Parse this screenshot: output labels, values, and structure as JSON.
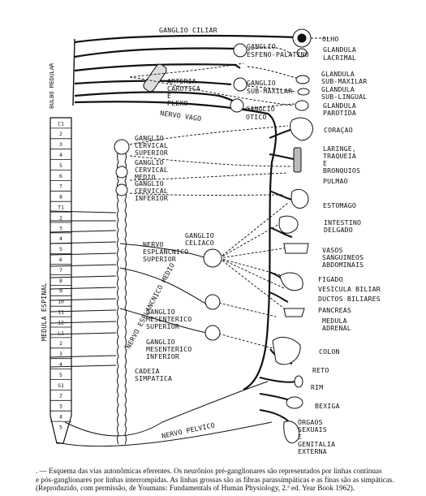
{
  "labels": {
    "ganglio_ciliar": "GANGLIO CILIAR",
    "ganglio_esfeno_l1": "GANGLIO",
    "ganglio_esfeno_l2": "ESFENO-PALATINO",
    "ganglio_sub_l1": "GANGLIO",
    "ganglio_sub_l2": "SUB-MAXILAR",
    "ganglio_otico_l1": "GANGLIO",
    "ganglio_otico_l2": "OTICO",
    "arteria_l1": "ARTERIA",
    "arteria_l2": "CAROTICA",
    "arteria_l3": "E",
    "arteria_l4": "PLEXO",
    "nervo_vago": "NERVO VAGO",
    "bulbo": "BULBO MEDULAR",
    "medula": "MEDULA ESPINAL",
    "cerv_sup_l1": "GANGLIO",
    "cerv_sup_l2": "CERVICAL",
    "cerv_sup_l3": "SUPERIOR",
    "cerv_med_l1": "GANGLIO",
    "cerv_med_l2": "CERVICAL",
    "cerv_med_l3": "MEDIO",
    "cerv_inf_l1": "GANGLIO",
    "cerv_inf_l2": "CERVICAL",
    "cerv_inf_l3": "INFERIOR",
    "celiaco_l1": "GANGLIO",
    "celiaco_l2": "CELIACO",
    "esplancnico_sup_l1": "NERVO",
    "esplancnico_sup_l2": "ESPLANCNICO",
    "esplancnico_sup_l3": "SUPERIOR",
    "esplancnico_medio": "NERVO ESPLANCNICO MEDIO",
    "mes_sup_l1": "GANGLIO",
    "mes_sup_l2": "MESENTERICO",
    "mes_sup_l3": "SUPERIOR",
    "mes_inf_l1": "GANGLIO",
    "mes_inf_l2": "MESENTERICO",
    "mes_inf_l3": "INFERIOR",
    "cadeia_l1": "CADEIA",
    "cadeia_l2": "SIMPATICA",
    "nervo_pelvico": "NERVO PELVICO"
  },
  "organs": {
    "olho": "OLHO",
    "lacrimal_l1": "GLANDULA",
    "lacrimal_l2": "LACRIMAL",
    "submax_l1": "GLANDULA",
    "submax_l2": "SUB-MAXILAR",
    "subling_l1": "GLANDULA",
    "subling_l2": "SUB-LINGUAL",
    "parotida_l1": "GLANDULA",
    "parotida_l2": "PAROTIDA",
    "coracao": "CORAÇAO",
    "laringe_l1": "LARINGE,",
    "laringe_l2": "TRAQUEIA",
    "laringe_l3": "E",
    "laringe_l4": "BRONQUIOS",
    "pulmao": "PULMAO",
    "estomago": "ESTOMAGO",
    "intestino_l1": "INTESTINO",
    "intestino_l2": "DELGADO",
    "vasos_l1": "VASOS",
    "vasos_l2": "SANGUINEOS",
    "vasos_l3": "ABDOMINAIS",
    "figado": "FIGADO",
    "vesicula": "VESICULA BILIAR",
    "ductos": "DUCTOS BILIARES",
    "pancreas": "PANCREAS",
    "medula_adrenal_l1": "MEDULA",
    "medula_adrenal_l2": "ADRENAL",
    "colon": "COLON",
    "reto": "RETO",
    "rim": "RIM",
    "bexiga": "BEXIGA",
    "orgaos_l1": "ÓRGAOS",
    "orgaos_l2": "SEXUAIS",
    "orgaos_l3": "E",
    "orgaos_l4": "GENITALIA",
    "orgaos_l5": "EXTERNA"
  },
  "spinal_segments": [
    "C1",
    "2",
    "3",
    "4",
    "5",
    "6",
    "7",
    "8",
    "T1",
    "2",
    "3",
    "4",
    "5",
    "6",
    "7",
    "8",
    "9",
    "10",
    "11",
    "12",
    "L1",
    "2",
    "3",
    "4",
    "5",
    "S1",
    "2",
    "3",
    "4",
    "5"
  ],
  "caption": {
    "line1": ". — Esquema das vias autonômicas eferentes.  Os neurônios pré-ganglionares são representados por linhas contínuas",
    "line2": "e pós-ganglionares por linhas interrompidas.  As linhas grossas são as fibras parassimpáticas e as finas são as simpáticas.",
    "line3": "(Reproduzido, com permissão, de Youmans: Fundamentals of Human Physiology, 2.ª ed. Year Book 1962)."
  }
}
